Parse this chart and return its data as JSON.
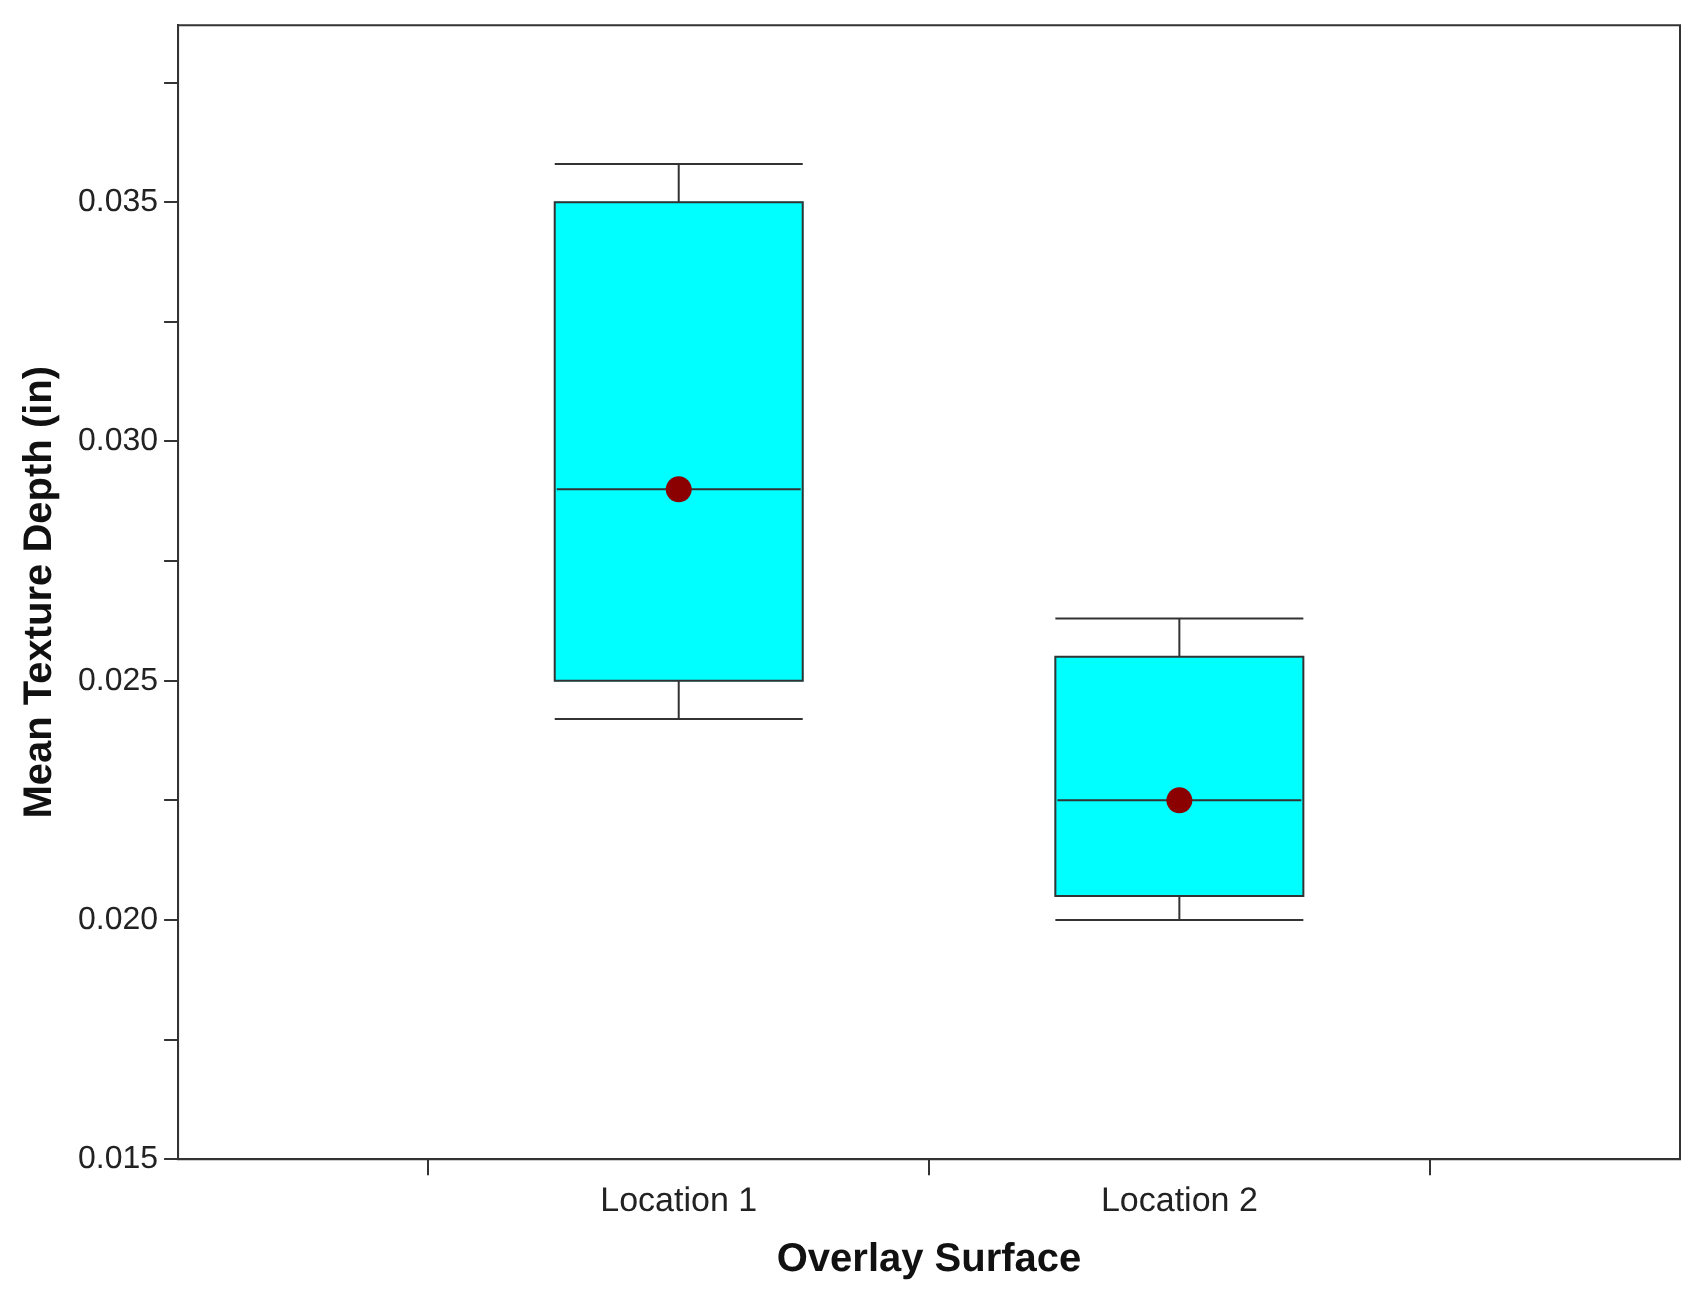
{
  "chart_data": {
    "type": "box",
    "xlabel": "Overlay Surface",
    "ylabel": "Mean Texture Depth (in)",
    "categories": [
      "Location 1",
      "Location 2"
    ],
    "boxes": [
      {
        "low": 0.0242,
        "q1": 0.025,
        "median": 0.029,
        "q3": 0.035,
        "high": 0.0358,
        "mean": 0.029
      },
      {
        "low": 0.02,
        "q1": 0.0205,
        "median": 0.0225,
        "q3": 0.0255,
        "high": 0.0263,
        "mean": 0.0225
      }
    ],
    "color": "#00ffff",
    "ylim": [
      0.015,
      0.0387
    ],
    "yticks": [
      0.015,
      {
        "value": 0.0175,
        "label": null
      },
      {
        "value": 0.02,
        "label": "0.020"
      },
      {
        "value": 0.0225,
        "label": null
      },
      0.025,
      {
        "value": 0.0275,
        "label": null
      },
      {
        "value": 0.03,
        "label": "0.030"
      },
      {
        "value": 0.0325,
        "label": null
      },
      0.035,
      {
        "value": 0.0375,
        "label": null
      }
    ],
    "grid": false,
    "legend": false
  }
}
